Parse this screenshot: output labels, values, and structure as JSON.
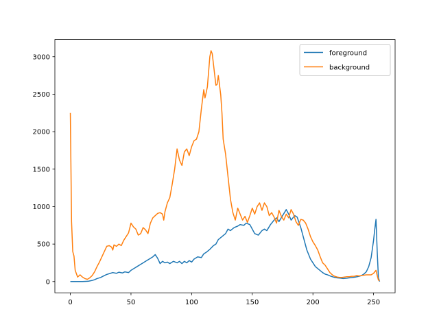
{
  "chart_data": {
    "type": "line",
    "title": "",
    "xlabel": "",
    "ylabel": "",
    "xlim": [
      -12.75,
      267.75
    ],
    "ylim": [
      -150,
      3230
    ],
    "xticks": [
      0,
      50,
      100,
      150,
      200,
      250
    ],
    "yticks": [
      0,
      500,
      1000,
      1500,
      2000,
      2500,
      3000
    ],
    "grid": false,
    "legend_position": "top-right",
    "series": [
      {
        "name": "foreground",
        "color": "#1f77b4",
        "points": [
          [
            0,
            0
          ],
          [
            5,
            0
          ],
          [
            10,
            0
          ],
          [
            15,
            5
          ],
          [
            18,
            15
          ],
          [
            20,
            25
          ],
          [
            22,
            40
          ],
          [
            25,
            55
          ],
          [
            28,
            80
          ],
          [
            30,
            95
          ],
          [
            33,
            110
          ],
          [
            35,
            120
          ],
          [
            38,
            110
          ],
          [
            40,
            125
          ],
          [
            43,
            115
          ],
          [
            45,
            130
          ],
          [
            48,
            120
          ],
          [
            50,
            150
          ],
          [
            53,
            180
          ],
          [
            55,
            200
          ],
          [
            58,
            230
          ],
          [
            60,
            250
          ],
          [
            62,
            270
          ],
          [
            65,
            300
          ],
          [
            68,
            330
          ],
          [
            70,
            360
          ],
          [
            72,
            310
          ],
          [
            74,
            240
          ],
          [
            76,
            270
          ],
          [
            78,
            250
          ],
          [
            80,
            260
          ],
          [
            82,
            240
          ],
          [
            85,
            270
          ],
          [
            88,
            250
          ],
          [
            90,
            270
          ],
          [
            92,
            240
          ],
          [
            94,
            270
          ],
          [
            96,
            250
          ],
          [
            98,
            280
          ],
          [
            100,
            260
          ],
          [
            102,
            300
          ],
          [
            105,
            330
          ],
          [
            108,
            320
          ],
          [
            110,
            370
          ],
          [
            112,
            390
          ],
          [
            115,
            430
          ],
          [
            118,
            480
          ],
          [
            120,
            500
          ],
          [
            122,
            560
          ],
          [
            125,
            600
          ],
          [
            128,
            640
          ],
          [
            130,
            700
          ],
          [
            132,
            680
          ],
          [
            135,
            720
          ],
          [
            138,
            740
          ],
          [
            140,
            760
          ],
          [
            143,
            750
          ],
          [
            145,
            780
          ],
          [
            148,
            760
          ],
          [
            150,
            700
          ],
          [
            152,
            640
          ],
          [
            155,
            620
          ],
          [
            158,
            680
          ],
          [
            160,
            700
          ],
          [
            162,
            680
          ],
          [
            165,
            760
          ],
          [
            168,
            820
          ],
          [
            170,
            850
          ],
          [
            172,
            800
          ],
          [
            175,
            880
          ],
          [
            178,
            960
          ],
          [
            180,
            900
          ],
          [
            182,
            820
          ],
          [
            185,
            880
          ],
          [
            187,
            860
          ],
          [
            190,
            720
          ],
          [
            192,
            600
          ],
          [
            195,
            420
          ],
          [
            198,
            300
          ],
          [
            200,
            250
          ],
          [
            202,
            200
          ],
          [
            205,
            160
          ],
          [
            208,
            120
          ],
          [
            210,
            100
          ],
          [
            212,
            90
          ],
          [
            215,
            70
          ],
          [
            218,
            55
          ],
          [
            220,
            50
          ],
          [
            223,
            45
          ],
          [
            225,
            40
          ],
          [
            228,
            45
          ],
          [
            230,
            50
          ],
          [
            233,
            55
          ],
          [
            235,
            60
          ],
          [
            238,
            70
          ],
          [
            240,
            80
          ],
          [
            242,
            100
          ],
          [
            244,
            130
          ],
          [
            246,
            200
          ],
          [
            248,
            320
          ],
          [
            250,
            550
          ],
          [
            251,
            700
          ],
          [
            252,
            830
          ],
          [
            253,
            400
          ],
          [
            254,
            50
          ],
          [
            255,
            0
          ]
        ]
      },
      {
        "name": "background",
        "color": "#ff7f0e",
        "points": [
          [
            0,
            2250
          ],
          [
            1,
            800
          ],
          [
            2,
            400
          ],
          [
            3,
            340
          ],
          [
            4,
            150
          ],
          [
            6,
            60
          ],
          [
            8,
            90
          ],
          [
            10,
            60
          ],
          [
            12,
            40
          ],
          [
            14,
            30
          ],
          [
            16,
            50
          ],
          [
            18,
            80
          ],
          [
            20,
            130
          ],
          [
            22,
            200
          ],
          [
            24,
            260
          ],
          [
            26,
            330
          ],
          [
            28,
            400
          ],
          [
            30,
            470
          ],
          [
            32,
            480
          ],
          [
            34,
            460
          ],
          [
            35,
            420
          ],
          [
            36,
            490
          ],
          [
            38,
            470
          ],
          [
            40,
            500
          ],
          [
            42,
            480
          ],
          [
            44,
            550
          ],
          [
            46,
            600
          ],
          [
            48,
            650
          ],
          [
            50,
            780
          ],
          [
            52,
            730
          ],
          [
            54,
            700
          ],
          [
            56,
            620
          ],
          [
            58,
            640
          ],
          [
            60,
            720
          ],
          [
            62,
            690
          ],
          [
            64,
            640
          ],
          [
            66,
            780
          ],
          [
            68,
            850
          ],
          [
            70,
            880
          ],
          [
            72,
            910
          ],
          [
            74,
            920
          ],
          [
            76,
            900
          ],
          [
            77,
            820
          ],
          [
            78,
            930
          ],
          [
            80,
            1050
          ],
          [
            82,
            1120
          ],
          [
            84,
            1300
          ],
          [
            86,
            1500
          ],
          [
            88,
            1770
          ],
          [
            90,
            1620
          ],
          [
            92,
            1550
          ],
          [
            94,
            1730
          ],
          [
            96,
            1770
          ],
          [
            98,
            1680
          ],
          [
            100,
            1800
          ],
          [
            102,
            1880
          ],
          [
            104,
            1900
          ],
          [
            106,
            2000
          ],
          [
            108,
            2300
          ],
          [
            110,
            2560
          ],
          [
            111,
            2450
          ],
          [
            112,
            2520
          ],
          [
            113,
            2600
          ],
          [
            114,
            2800
          ],
          [
            115,
            3000
          ],
          [
            116,
            3080
          ],
          [
            117,
            3040
          ],
          [
            118,
            2900
          ],
          [
            120,
            2620
          ],
          [
            121,
            2630
          ],
          [
            122,
            2750
          ],
          [
            124,
            2490
          ],
          [
            125,
            2250
          ],
          [
            126,
            1900
          ],
          [
            128,
            1700
          ],
          [
            130,
            1400
          ],
          [
            132,
            1100
          ],
          [
            134,
            920
          ],
          [
            136,
            820
          ],
          [
            138,
            980
          ],
          [
            140,
            900
          ],
          [
            142,
            820
          ],
          [
            144,
            870
          ],
          [
            146,
            790
          ],
          [
            148,
            880
          ],
          [
            150,
            980
          ],
          [
            152,
            900
          ],
          [
            154,
            1000
          ],
          [
            156,
            1050
          ],
          [
            158,
            950
          ],
          [
            160,
            1050
          ],
          [
            162,
            1000
          ],
          [
            164,
            880
          ],
          [
            166,
            920
          ],
          [
            168,
            860
          ],
          [
            170,
            780
          ],
          [
            172,
            950
          ],
          [
            174,
            870
          ],
          [
            176,
            820
          ],
          [
            178,
            900
          ],
          [
            180,
            850
          ],
          [
            182,
            960
          ],
          [
            184,
            900
          ],
          [
            186,
            800
          ],
          [
            188,
            750
          ],
          [
            190,
            830
          ],
          [
            192,
            820
          ],
          [
            194,
            780
          ],
          [
            196,
            700
          ],
          [
            198,
            600
          ],
          [
            200,
            530
          ],
          [
            202,
            480
          ],
          [
            204,
            420
          ],
          [
            206,
            330
          ],
          [
            208,
            250
          ],
          [
            210,
            220
          ],
          [
            212,
            170
          ],
          [
            214,
            120
          ],
          [
            216,
            90
          ],
          [
            218,
            70
          ],
          [
            220,
            60
          ],
          [
            222,
            55
          ],
          [
            224,
            55
          ],
          [
            226,
            60
          ],
          [
            228,
            65
          ],
          [
            230,
            65
          ],
          [
            232,
            70
          ],
          [
            234,
            70
          ],
          [
            236,
            80
          ],
          [
            238,
            75
          ],
          [
            240,
            80
          ],
          [
            242,
            85
          ],
          [
            244,
            90
          ],
          [
            246,
            90
          ],
          [
            248,
            90
          ],
          [
            250,
            110
          ],
          [
            252,
            150
          ],
          [
            253,
            80
          ],
          [
            254,
            20
          ],
          [
            255,
            10
          ]
        ]
      }
    ]
  }
}
